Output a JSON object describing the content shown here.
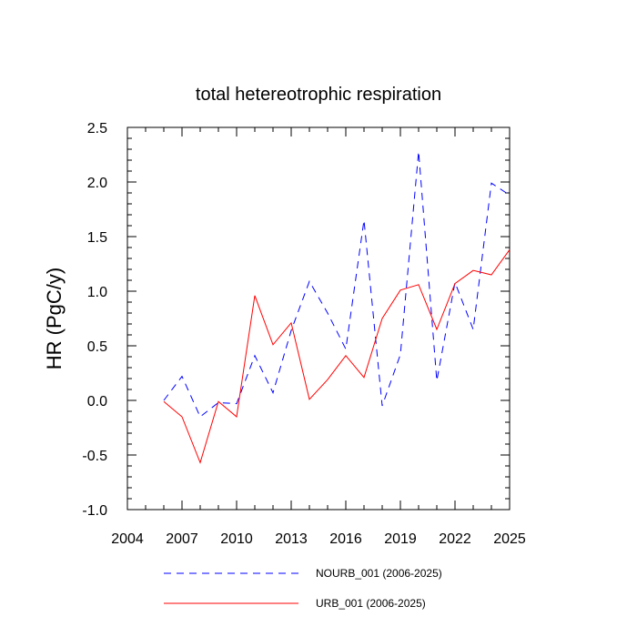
{
  "chart_data": {
    "type": "line",
    "title": "total hetereotrophic respiration",
    "xlabel": "",
    "ylabel": "HR  (PgC/y)",
    "xlim": [
      2004,
      2025
    ],
    "ylim": [
      -1.0,
      2.5
    ],
    "x_ticks": [
      2004,
      2007,
      2010,
      2013,
      2016,
      2019,
      2022,
      2025
    ],
    "y_ticks": [
      -1.0,
      -0.5,
      0.0,
      0.5,
      1.0,
      1.5,
      2.0,
      2.5
    ],
    "y_tick_labels": [
      "-1.0",
      "-0.5",
      "0.0",
      "0.5",
      "1.0",
      "1.5",
      "2.0",
      "2.5"
    ],
    "x": [
      2006,
      2007,
      2008,
      2009,
      2010,
      2011,
      2012,
      2013,
      2014,
      2015,
      2016,
      2017,
      2018,
      2019,
      2020,
      2021,
      2022,
      2023,
      2024,
      2025
    ],
    "series": [
      {
        "name": "NOURB_001 (2006-2025)",
        "color": "#0000ff",
        "style": "dashed",
        "values": [
          0.0,
          0.22,
          -0.15,
          -0.02,
          -0.03,
          0.41,
          0.07,
          0.64,
          1.09,
          0.8,
          0.47,
          1.65,
          -0.05,
          0.42,
          2.28,
          0.18,
          1.08,
          0.65,
          1.99,
          1.88
        ]
      },
      {
        "name": "URB_001 (2006-2025)",
        "color": "#ff0000",
        "style": "solid",
        "values": [
          -0.01,
          -0.15,
          -0.57,
          -0.01,
          -0.15,
          0.96,
          0.51,
          0.71,
          0.01,
          0.19,
          0.41,
          0.21,
          0.75,
          1.01,
          1.06,
          0.65,
          1.07,
          1.19,
          1.15,
          1.38
        ]
      }
    ],
    "legend_position": "bottom"
  }
}
